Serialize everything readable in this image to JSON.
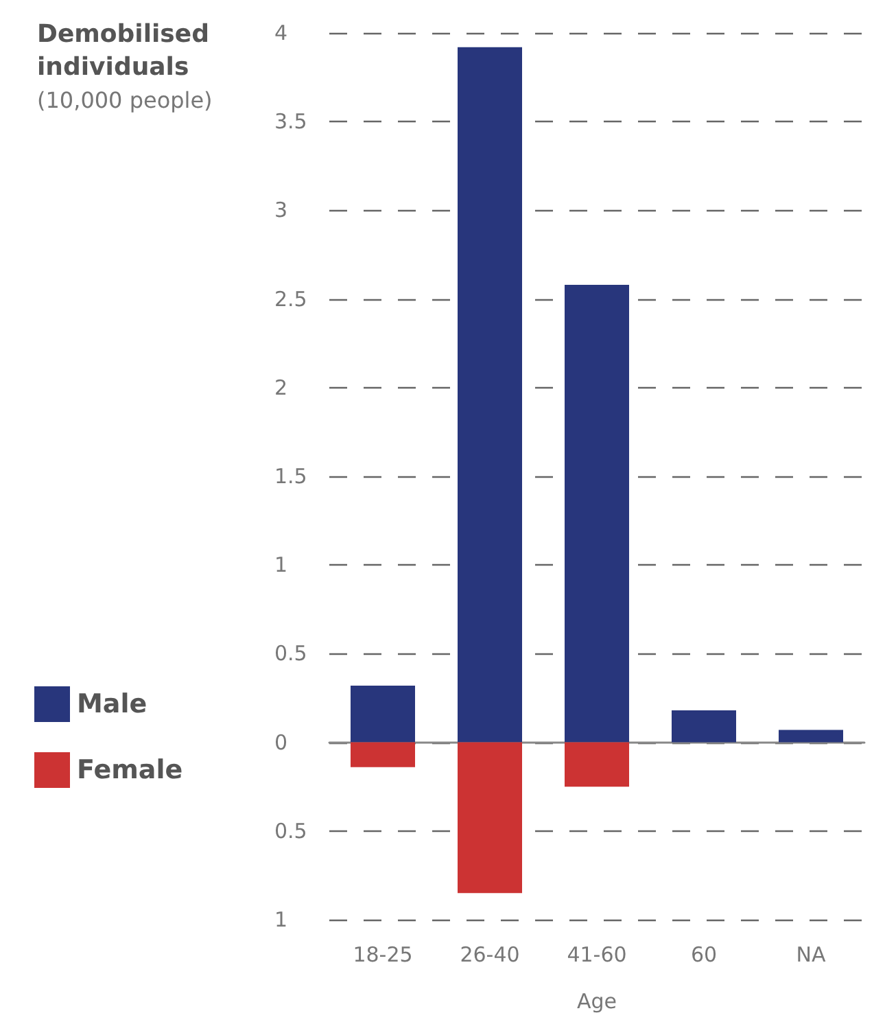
{
  "chart_data": {
    "type": "bar",
    "title": "Demobilised individuals",
    "subtitle": "(10,000 people)",
    "xlabel": "Age",
    "categories": [
      "18-25",
      "26-40",
      "41-60",
      "60",
      "NA"
    ],
    "series": [
      {
        "name": "Male",
        "color": "#28367c",
        "values": [
          0.32,
          3.92,
          2.58,
          0.18,
          0.07
        ]
      },
      {
        "name": "Female",
        "color": "#cc3333",
        "values": [
          -0.14,
          -0.85,
          -0.25,
          null,
          null
        ]
      }
    ],
    "stacked": true,
    "ylim": [
      -1,
      4
    ],
    "yticks": [
      {
        "value": -1,
        "label": "1"
      },
      {
        "value": -0.5,
        "label": "0.5"
      },
      0,
      0.5,
      1,
      1.5,
      2,
      2.5,
      3,
      3.5,
      4
    ],
    "grid": "y",
    "legend": "bottom left"
  }
}
